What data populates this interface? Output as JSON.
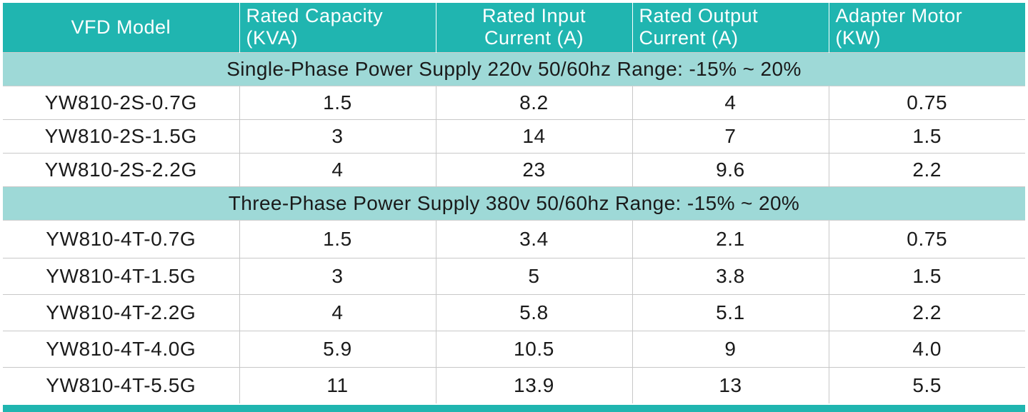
{
  "columns": [
    {
      "line1": "VFD Model",
      "line2": ""
    },
    {
      "line1": "Rated Capacity",
      "line2": "(KVA)"
    },
    {
      "line1": "Rated Input",
      "line2": "Current (A)"
    },
    {
      "line1": "Rated Output",
      "line2": "Current (A)"
    },
    {
      "line1": "Adapter Motor",
      "line2": "(KW)"
    }
  ],
  "sections": [
    {
      "title": "Single-Phase Power Supply 220v 50/60hz Range: -15% ~ 20%",
      "rows": [
        {
          "model": "YW810-2S-0.7G",
          "capacity": "1.5",
          "input": "8.2",
          "output": "4",
          "motor": "0.75"
        },
        {
          "model": "YW810-2S-1.5G",
          "capacity": "3",
          "input": "14",
          "output": "7",
          "motor": "1.5"
        },
        {
          "model": "YW810-2S-2.2G",
          "capacity": "4",
          "input": "23",
          "output": "9.6",
          "motor": "2.2"
        }
      ]
    },
    {
      "title": "Three-Phase Power Supply 380v 50/60hz Range: -15% ~ 20%",
      "rows": [
        {
          "model": "YW810-4T-0.7G",
          "capacity": "1.5",
          "input": "3.4",
          "output": "2.1",
          "motor": "0.75"
        },
        {
          "model": "YW810-4T-1.5G",
          "capacity": "3",
          "input": "5",
          "output": "3.8",
          "motor": "1.5"
        },
        {
          "model": "YW810-4T-2.2G",
          "capacity": "4",
          "input": "5.8",
          "output": "5.1",
          "motor": "2.2"
        },
        {
          "model": "YW810-4T-4.0G",
          "capacity": "5.9",
          "input": "10.5",
          "output": "9",
          "motor": "4.0"
        },
        {
          "model": "YW810-4T-5.5G",
          "capacity": "11",
          "input": "13.9",
          "output": "13",
          "motor": "5.5"
        }
      ]
    }
  ],
  "colors": {
    "header_bg": "#20b5b0",
    "section_bg": "#9ed9d7",
    "grid_line": "#c8c8c8",
    "text": "#1a1a1a"
  }
}
